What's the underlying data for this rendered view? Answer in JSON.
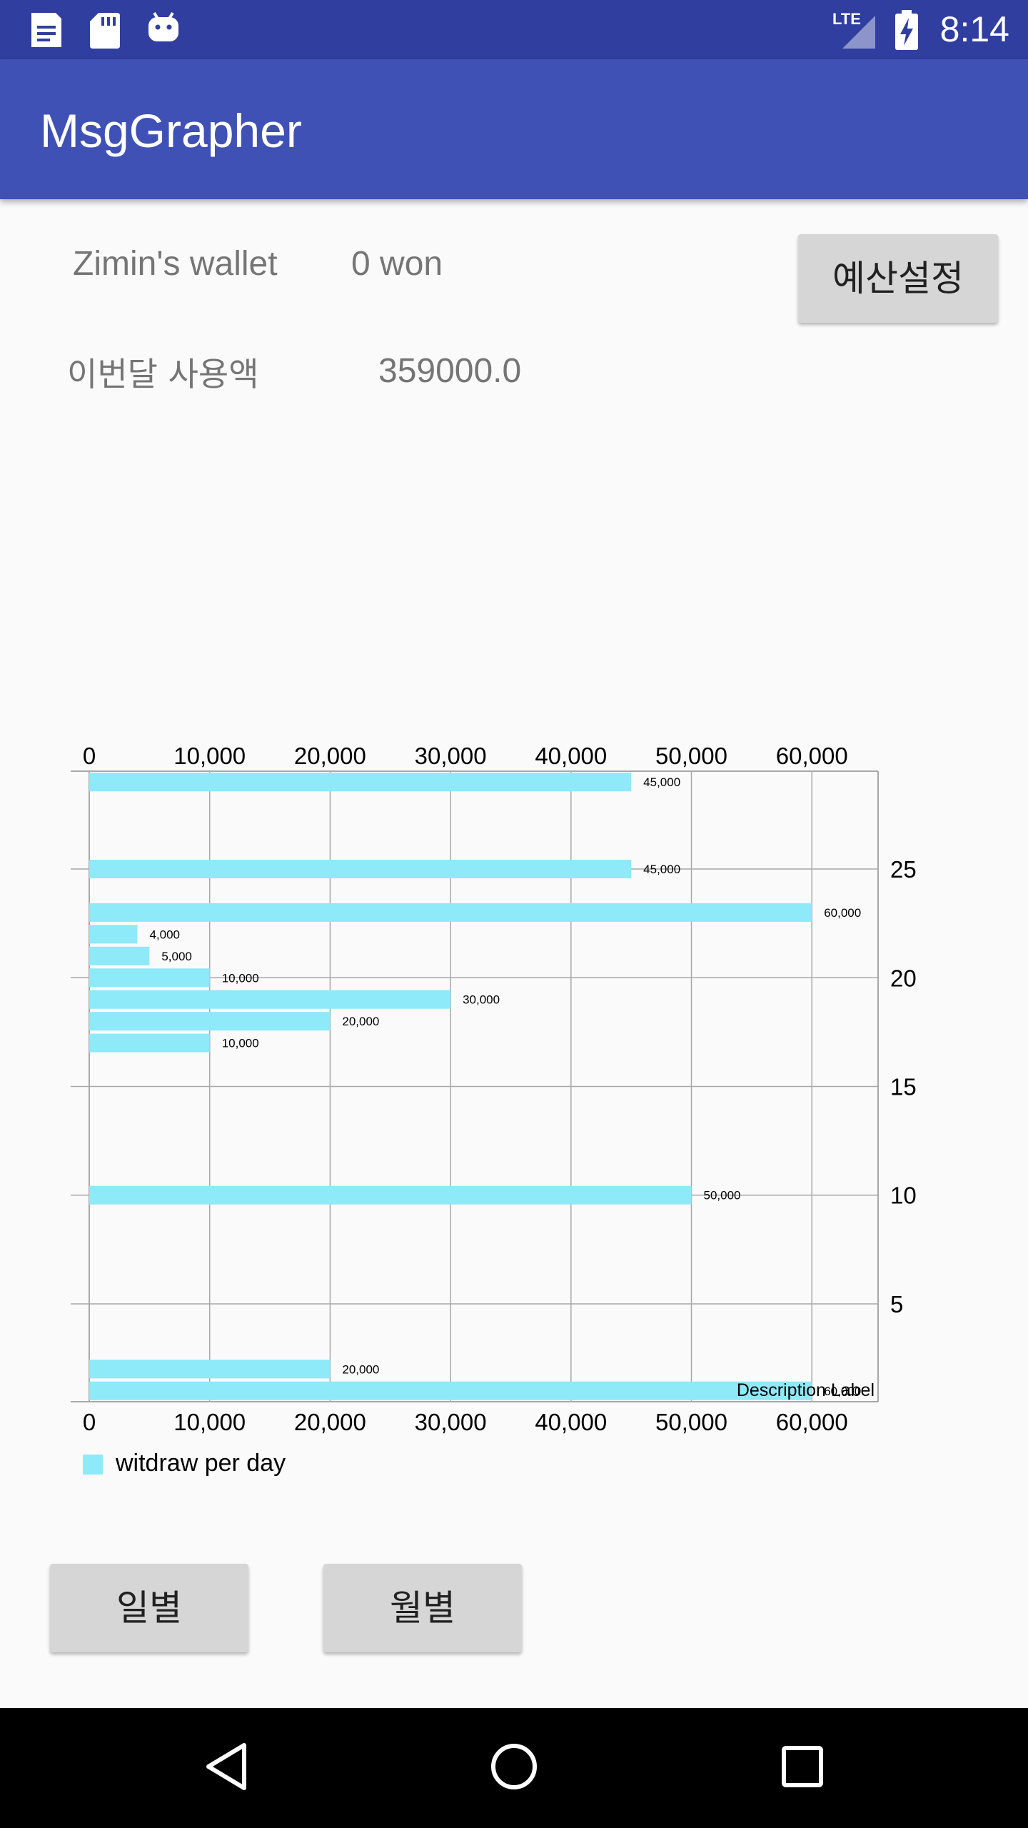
{
  "status_bar": {
    "time": "8:14",
    "network": "LTE",
    "left_icons": [
      "notes-icon",
      "sd-card-icon",
      "android-icon"
    ],
    "right_icons": [
      "lte-signal-icon",
      "battery-charging-icon"
    ]
  },
  "app_bar": {
    "title": "MsgGrapher"
  },
  "wallet": {
    "name_label": "Zimin's wallet",
    "amount": "0 won",
    "budget_button": "예산설정",
    "month_label": "이번달 사용액",
    "month_value": "359000.0"
  },
  "chart_data": {
    "type": "bar",
    "orientation": "horizontal",
    "series": [
      {
        "name": "witdraw per day",
        "color": "#8ee9f9",
        "points": [
          {
            "y": 1,
            "value": 60000,
            "label": "60,000"
          },
          {
            "y": 2,
            "value": 20000,
            "label": "20,000"
          },
          {
            "y": 10,
            "value": 50000,
            "label": "50,000"
          },
          {
            "y": 17,
            "value": 10000,
            "label": "10,000"
          },
          {
            "y": 18,
            "value": 20000,
            "label": "20,000"
          },
          {
            "y": 19,
            "value": 30000,
            "label": "30,000"
          },
          {
            "y": 20,
            "value": 10000,
            "label": "10,000"
          },
          {
            "y": 21,
            "value": 5000,
            "label": "5,000"
          },
          {
            "y": 22,
            "value": 4000,
            "label": "4,000"
          },
          {
            "y": 23,
            "value": 60000,
            "label": "60,000"
          },
          {
            "y": 25,
            "value": 45000,
            "label": "45,000"
          },
          {
            "y": 29,
            "value": 45000,
            "label": "45,000"
          }
        ]
      }
    ],
    "value_axis": {
      "range": [
        0,
        65500
      ],
      "ticks": [
        0,
        10000,
        20000,
        30000,
        40000,
        50000,
        60000
      ],
      "tick_labels": [
        "0",
        "10,000",
        "20,000",
        "30,000",
        "40,000",
        "50,000",
        "60,000"
      ],
      "position": "top and bottom"
    },
    "category_axis": {
      "range": [
        0.5,
        29.5
      ],
      "ticks": [
        5,
        10,
        15,
        20,
        25
      ],
      "tick_labels": [
        "5",
        "10",
        "15",
        "20",
        "25"
      ],
      "position": "right"
    },
    "grid": true,
    "legend": "bottom-left",
    "description": "Description Label"
  },
  "buttons": {
    "daily": "일별",
    "monthly": "월별"
  },
  "nav_bar": {
    "back": "back-icon",
    "home": "home-icon",
    "recents": "recents-icon"
  }
}
